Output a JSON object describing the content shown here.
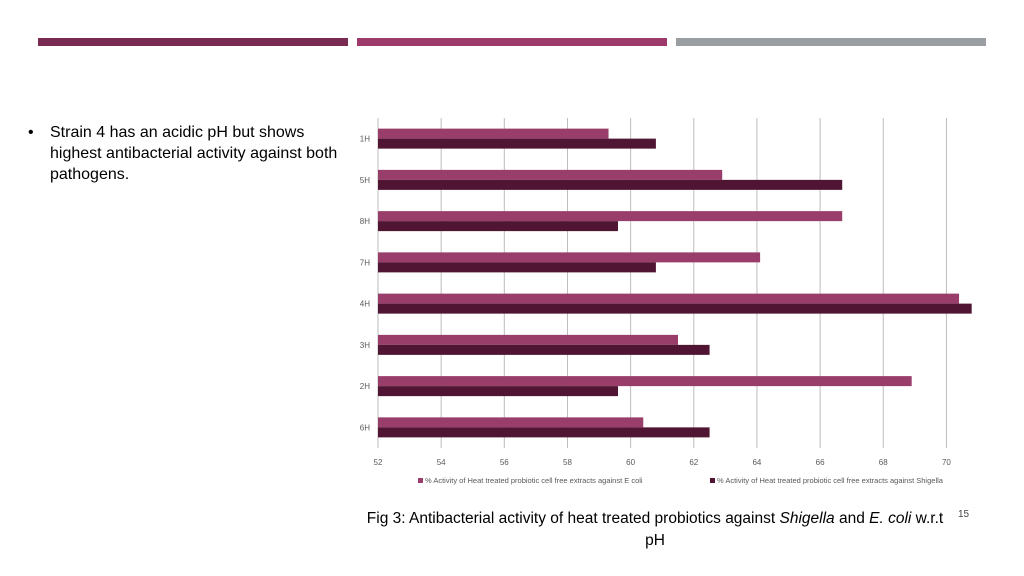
{
  "colors": {
    "bar_dark": "#7a2b52",
    "bar_mid": "#9b3a6b",
    "bar_gray": "#9a9ea3",
    "series_ecoli": "#993d6a",
    "series_shigella": "#4f1532",
    "grid": "#bdbdbd"
  },
  "bullet": {
    "marker": "•",
    "text": "Strain 4 has an acidic pH but shows highest antibacterial activity against both pathogens."
  },
  "caption": {
    "prefix": "Fig 3: Antibacterial activity of heat treated probiotics against ",
    "italic1": "Shigella",
    "mid": " and ",
    "italic2": "E. coli",
    "suffix": " w.r.t pH"
  },
  "slide_number": "15",
  "chart_data": {
    "type": "bar",
    "orientation": "horizontal",
    "categories": [
      "1H",
      "5H",
      "8H",
      "7H",
      "4H",
      "3H",
      "2H",
      "6H"
    ],
    "series": [
      {
        "name": "% Activity of Heat treated probiotic cell free extracts against E coli",
        "values": [
          59.3,
          62.9,
          66.7,
          64.1,
          70.4,
          61.5,
          68.9,
          60.4
        ]
      },
      {
        "name": "% Activity of Heat treated probiotic cell free extracts against Shigella",
        "values": [
          60.8,
          66.7,
          59.6,
          60.8,
          70.8,
          62.5,
          59.6,
          62.5
        ]
      }
    ],
    "xlim": [
      52,
      71
    ],
    "xticks": [
      "52",
      "54",
      "56",
      "58",
      "60",
      "62",
      "64",
      "66",
      "68",
      "70"
    ],
    "grid": true,
    "legend": "bottom"
  }
}
